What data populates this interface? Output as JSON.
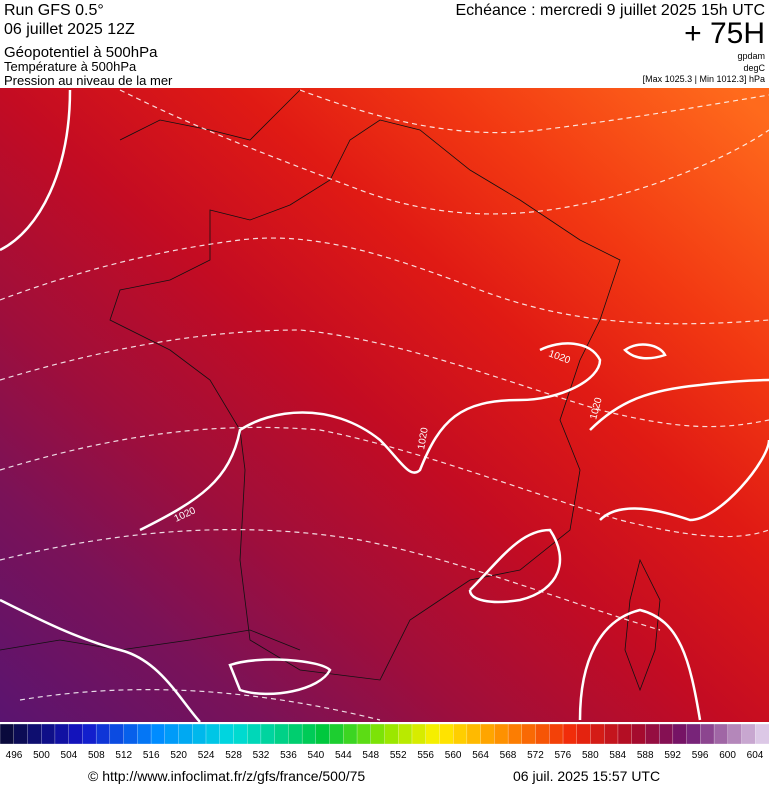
{
  "header": {
    "run": "Run GFS 0.5°",
    "date": "06 juillet 2025 12Z",
    "fields": [
      "Géopotentiel à 500hPa",
      "Température à 500hPa",
      "Pression au niveau de la mer"
    ],
    "echeance": "Echéance : mercredi 9 juillet 2025 15h UTC",
    "lead": "+ 75H",
    "units": [
      "gpdam",
      "degC"
    ],
    "range": "[Max 1025.3 | Min 1012.3] hPa"
  },
  "map": {
    "contour_labels": [
      "1020",
      "1020",
      "1020",
      "1020"
    ]
  },
  "colorbar": {
    "labels": [
      496,
      500,
      504,
      508,
      512,
      516,
      520,
      524,
      528,
      532,
      536,
      540,
      544,
      548,
      552,
      556,
      560,
      564,
      568,
      572,
      576,
      580,
      584,
      588,
      592,
      596,
      600,
      604
    ]
  },
  "footer": {
    "url": "© http://www.infoclimat.fr/z/gfs/france/500/75",
    "timestamp": "06 juil. 2025 15:57 UTC"
  }
}
